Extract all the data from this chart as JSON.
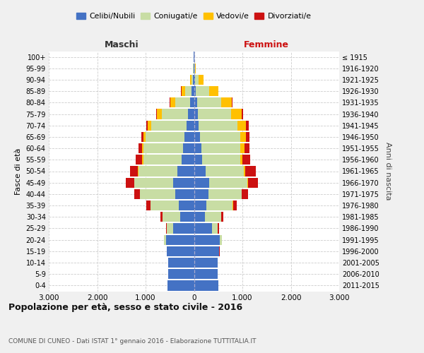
{
  "age_groups": [
    "0-4",
    "5-9",
    "10-14",
    "15-19",
    "20-24",
    "25-29",
    "30-34",
    "35-39",
    "40-44",
    "45-49",
    "50-54",
    "55-59",
    "60-64",
    "65-69",
    "70-74",
    "75-79",
    "80-84",
    "85-89",
    "90-94",
    "95-99",
    "100+"
  ],
  "birth_years": [
    "2011-2015",
    "2006-2010",
    "2001-2005",
    "1996-2000",
    "1991-1995",
    "1986-1990",
    "1981-1985",
    "1976-1980",
    "1971-1975",
    "1966-1970",
    "1961-1965",
    "1956-1960",
    "1951-1955",
    "1946-1950",
    "1941-1945",
    "1936-1940",
    "1931-1935",
    "1926-1930",
    "1921-1925",
    "1916-1920",
    "≤ 1915"
  ],
  "male": {
    "celibi": [
      550,
      530,
      530,
      560,
      580,
      430,
      280,
      310,
      380,
      430,
      350,
      260,
      230,
      200,
      160,
      120,
      80,
      50,
      20,
      10,
      5
    ],
    "coniugati": [
      0,
      0,
      0,
      5,
      40,
      130,
      370,
      590,
      730,
      800,
      800,
      790,
      810,
      800,
      720,
      550,
      310,
      130,
      30,
      5,
      2
    ],
    "vedovi": [
      0,
      0,
      0,
      0,
      2,
      2,
      2,
      2,
      2,
      5,
      10,
      20,
      30,
      50,
      80,
      90,
      100,
      80,
      30,
      5,
      1
    ],
    "divorziati": [
      0,
      0,
      0,
      2,
      5,
      20,
      40,
      80,
      120,
      170,
      160,
      130,
      80,
      40,
      30,
      20,
      10,
      5,
      2,
      0,
      0
    ]
  },
  "female": {
    "nubili": [
      500,
      490,
      490,
      520,
      530,
      370,
      220,
      250,
      300,
      310,
      240,
      175,
      150,
      130,
      100,
      80,
      60,
      40,
      20,
      10,
      3
    ],
    "coniugate": [
      0,
      0,
      0,
      5,
      40,
      120,
      340,
      550,
      680,
      790,
      790,
      780,
      810,
      820,
      800,
      680,
      500,
      280,
      80,
      10,
      2
    ],
    "vedove": [
      0,
      0,
      0,
      0,
      2,
      3,
      5,
      5,
      5,
      15,
      30,
      50,
      80,
      120,
      180,
      220,
      220,
      180,
      100,
      20,
      2
    ],
    "divorziate": [
      0,
      0,
      0,
      2,
      5,
      20,
      40,
      80,
      130,
      210,
      220,
      160,
      110,
      80,
      50,
      30,
      10,
      5,
      2,
      0,
      0
    ]
  },
  "colors": {
    "celibi_nubili": "#4472c4",
    "coniugati": "#c8dda4",
    "vedovi": "#ffc000",
    "divorziati": "#cc1111"
  },
  "xlim": 3000,
  "title": "Popolazione per età, sesso e stato civile - 2016",
  "subtitle": "COMUNE DI CUNEO - Dati ISTAT 1° gennaio 2016 - Elaborazione TUTTITALIA.IT",
  "ylabel_left": "Fasce di età",
  "ylabel_right": "Anni di nascita",
  "xlabel_left": "Maschi",
  "xlabel_right": "Femmine",
  "legend_labels": [
    "Celibi/Nubili",
    "Coniugati/e",
    "Vedovi/e",
    "Divorziati/e"
  ],
  "bg_color": "#f0f0f0",
  "plot_bg_color": "#ffffff"
}
